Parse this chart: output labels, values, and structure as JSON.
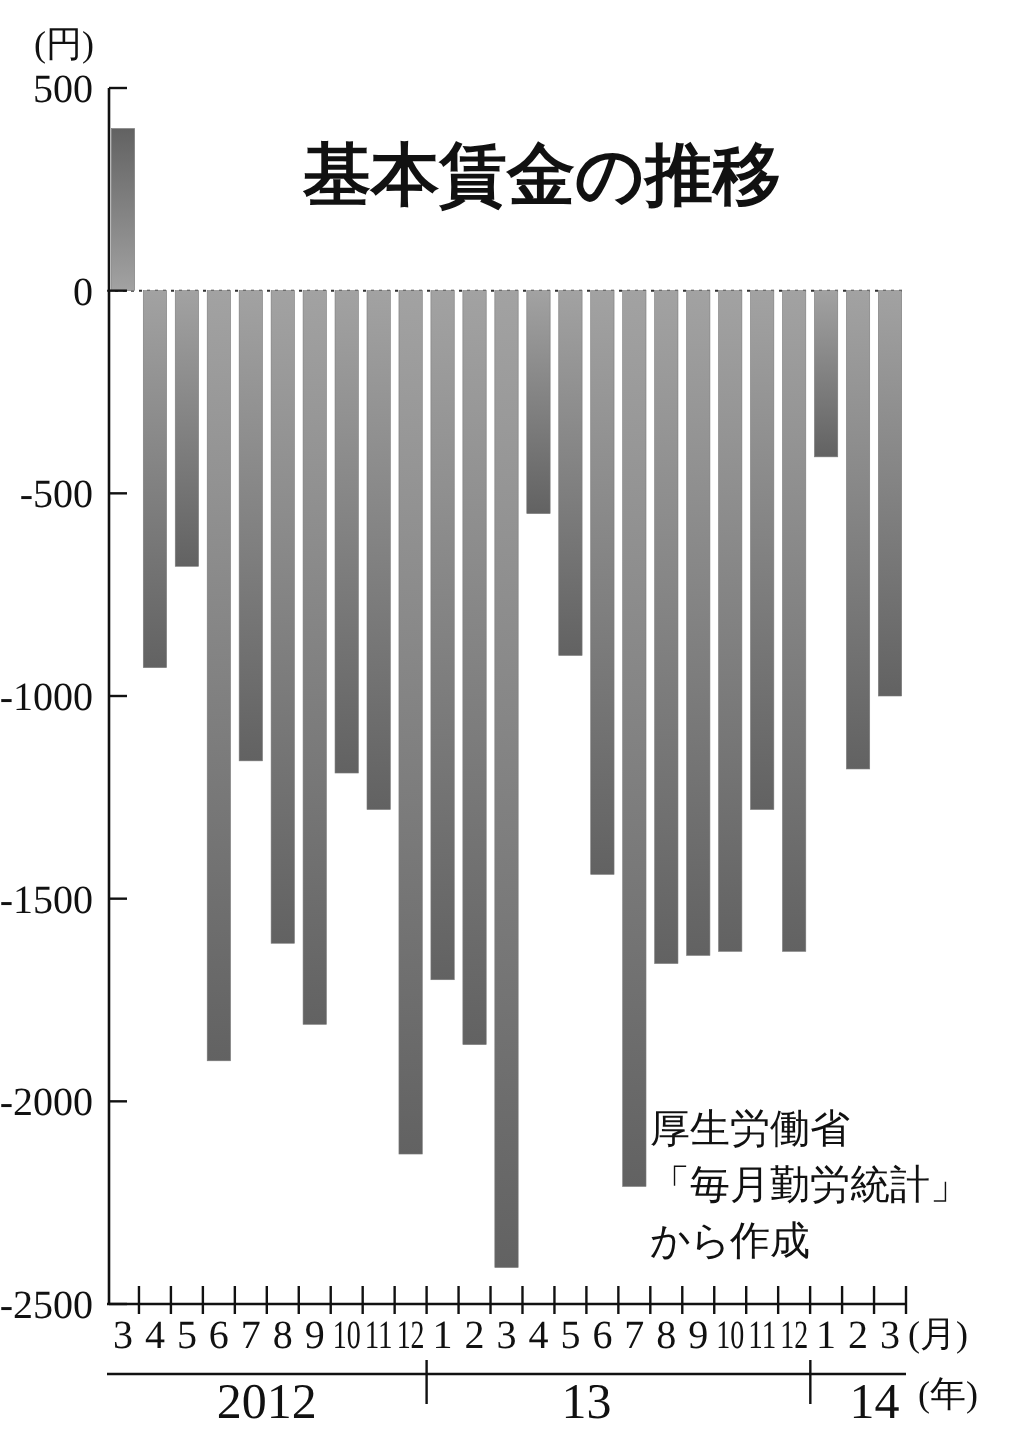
{
  "chart_data": {
    "type": "bar",
    "title": "基本賃金の推移",
    "ylabel": "(円)",
    "xlabel": "(月)",
    "x2label": "(年)",
    "categories": [
      "3",
      "4",
      "5",
      "6",
      "7",
      "8",
      "9",
      "10",
      "11",
      "12",
      "1",
      "2",
      "3",
      "4",
      "5",
      "6",
      "7",
      "8",
      "9",
      "10",
      "11",
      "12",
      "1",
      "2",
      "3"
    ],
    "values": [
      400,
      -930,
      -680,
      -1900,
      -1160,
      -1610,
      -1810,
      -1190,
      -1280,
      -2130,
      -1700,
      -1860,
      -2410,
      -550,
      -900,
      -1440,
      -2210,
      -1660,
      -1640,
      -1630,
      -1280,
      -1630,
      -410,
      -1180,
      -1000
    ],
    "color": "#7a7a7a",
    "x2lim": [
      "2012-02-15",
      "2014-03-16"
    ],
    "x2ticks": [
      {
        "value": "2012-07-16",
        "label": "2012"
      },
      {
        "value": "2012-12-15",
        "label": null
      },
      {
        "value": "2013-05-16",
        "label": "13"
      },
      {
        "value": "2013-12-15",
        "label": null
      },
      {
        "value": "2014-02-14",
        "label": "14"
      }
    ],
    "ylim": [
      -2500,
      500
    ],
    "yticks": [
      -2500,
      -2000,
      -1500,
      -1000,
      -500,
      0,
      500
    ],
    "ref_lines": [
      {
        "axis": "y",
        "value": 0,
        "line_style": "dotted"
      }
    ],
    "annotations": [
      "厚生労働省「毎月勤労統計」から作成"
    ]
  }
}
